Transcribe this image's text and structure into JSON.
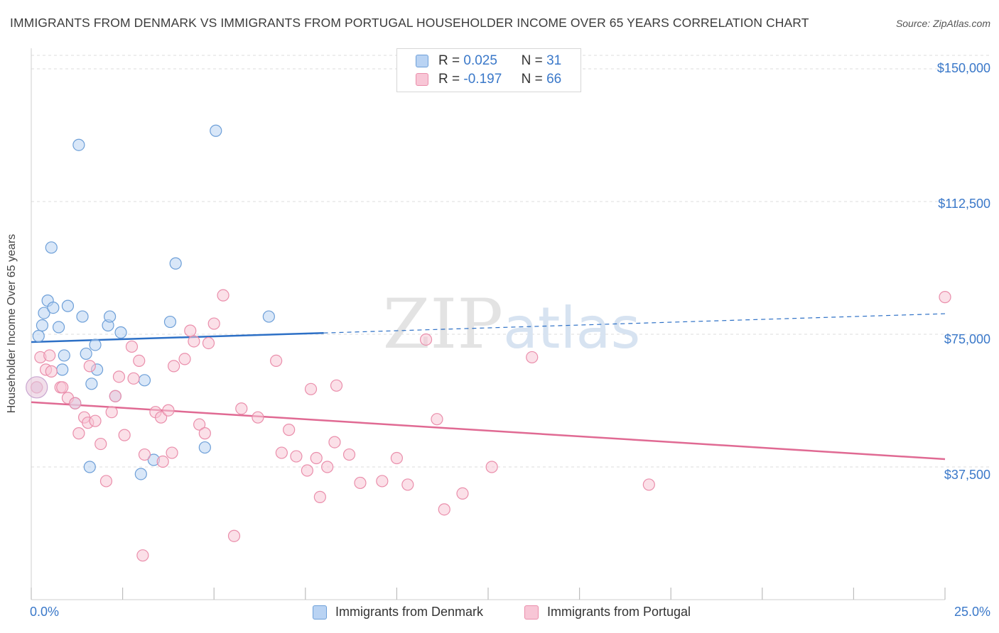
{
  "chart_data": {
    "type": "scatter",
    "title": "IMMIGRANTS FROM DENMARK VS IMMIGRANTS FROM PORTUGAL HOUSEHOLDER INCOME OVER 65 YEARS CORRELATION CHART",
    "source": "Source: ZipAtlas.com",
    "watermark": "ZIPatlas",
    "ylabel": "Householder Income Over 65 years",
    "xlabel": "",
    "x_axis": {
      "min": 0,
      "max": 25,
      "tick_labels": [
        "0.0%",
        "25.0%"
      ]
    },
    "y_axis": {
      "min": 0,
      "max": 150000,
      "ticks": [
        37500,
        75000,
        112500,
        150000
      ],
      "tick_labels": [
        "$37,500",
        "$75,000",
        "$112,500",
        "$150,000"
      ]
    },
    "grid": true,
    "legend_placement": "top-center",
    "colors": {
      "denmark_fill": "#b9d3f3",
      "denmark_stroke": "#6d9fd8",
      "denmark_line": "#2d70c6",
      "portugal_fill": "#f8c6d6",
      "portugal_stroke": "#ea8eab",
      "portugal_line": "#e06a93",
      "tick_text": "#3a78c9"
    },
    "series": [
      {
        "name": "Immigrants from Denmark",
        "r_label": "R =",
        "r_value": "0.025",
        "n_label": "N =",
        "n_value": "31",
        "trend": {
          "x_start": 0,
          "y_start": 72800,
          "x_solid_end": 8,
          "x_end": 25,
          "y_end": 80800
        },
        "points": [
          [
            0.15,
            60000
          ],
          [
            0.2,
            74500
          ],
          [
            0.3,
            77500
          ],
          [
            0.35,
            81000
          ],
          [
            0.45,
            84500
          ],
          [
            0.55,
            99500
          ],
          [
            0.6,
            82500
          ],
          [
            0.75,
            77000
          ],
          [
            0.85,
            65000
          ],
          [
            0.9,
            69000
          ],
          [
            1.0,
            83000
          ],
          [
            1.2,
            55500
          ],
          [
            1.3,
            128500
          ],
          [
            1.4,
            80000
          ],
          [
            1.5,
            69500
          ],
          [
            1.6,
            37500
          ],
          [
            1.65,
            61000
          ],
          [
            1.75,
            72000
          ],
          [
            1.8,
            65000
          ],
          [
            2.1,
            77500
          ],
          [
            2.15,
            80000
          ],
          [
            2.3,
            57500
          ],
          [
            2.45,
            75500
          ],
          [
            3.0,
            35500
          ],
          [
            3.1,
            62000
          ],
          [
            3.35,
            39500
          ],
          [
            3.8,
            78500
          ],
          [
            3.95,
            95000
          ],
          [
            4.75,
            43000
          ],
          [
            5.05,
            132500
          ],
          [
            6.5,
            80000
          ]
        ]
      },
      {
        "name": "Immigrants from Portugal",
        "r_label": "R =",
        "r_value": "-0.197",
        "n_label": "N =",
        "n_value": "66",
        "trend": {
          "x_start": 0,
          "y_start": 55800,
          "x_end": 25,
          "y_end": 39700
        },
        "points": [
          [
            0.15,
            60000
          ],
          [
            0.25,
            68500
          ],
          [
            0.4,
            65000
          ],
          [
            0.5,
            69000
          ],
          [
            0.55,
            64500
          ],
          [
            0.8,
            60000
          ],
          [
            0.85,
            60000
          ],
          [
            1.0,
            57000
          ],
          [
            1.2,
            55500
          ],
          [
            1.3,
            47000
          ],
          [
            1.45,
            51500
          ],
          [
            1.55,
            50000
          ],
          [
            1.6,
            66000
          ],
          [
            1.75,
            50500
          ],
          [
            1.9,
            44000
          ],
          [
            2.05,
            33500
          ],
          [
            2.2,
            53000
          ],
          [
            2.3,
            57500
          ],
          [
            2.4,
            63000
          ],
          [
            2.55,
            46500
          ],
          [
            2.75,
            71500
          ],
          [
            2.8,
            62500
          ],
          [
            2.95,
            67500
          ],
          [
            3.1,
            41000
          ],
          [
            3.4,
            53000
          ],
          [
            3.55,
            51500
          ],
          [
            3.6,
            39000
          ],
          [
            3.75,
            53500
          ],
          [
            3.85,
            41500
          ],
          [
            3.9,
            66000
          ],
          [
            4.2,
            68000
          ],
          [
            4.35,
            76000
          ],
          [
            4.45,
            73000
          ],
          [
            4.6,
            49500
          ],
          [
            4.75,
            47000
          ],
          [
            4.85,
            72500
          ],
          [
            5.0,
            78000
          ],
          [
            5.55,
            18000
          ],
          [
            5.75,
            54000
          ],
          [
            6.2,
            51500
          ],
          [
            6.7,
            67500
          ],
          [
            6.85,
            41500
          ],
          [
            7.05,
            48000
          ],
          [
            7.25,
            40500
          ],
          [
            7.55,
            36500
          ],
          [
            7.65,
            59500
          ],
          [
            7.8,
            40000
          ],
          [
            7.9,
            29000
          ],
          [
            8.1,
            37500
          ],
          [
            8.3,
            44500
          ],
          [
            8.35,
            60500
          ],
          [
            8.7,
            41000
          ],
          [
            9.0,
            33000
          ],
          [
            9.6,
            33500
          ],
          [
            10.0,
            40000
          ],
          [
            10.3,
            32500
          ],
          [
            10.8,
            73500
          ],
          [
            11.1,
            51000
          ],
          [
            11.3,
            25500
          ],
          [
            11.8,
            30000
          ],
          [
            12.6,
            37500
          ],
          [
            13.7,
            68500
          ],
          [
            16.9,
            32500
          ],
          [
            25.0,
            85500
          ],
          [
            5.25,
            86000
          ],
          [
            3.05,
            12500
          ]
        ]
      }
    ]
  }
}
